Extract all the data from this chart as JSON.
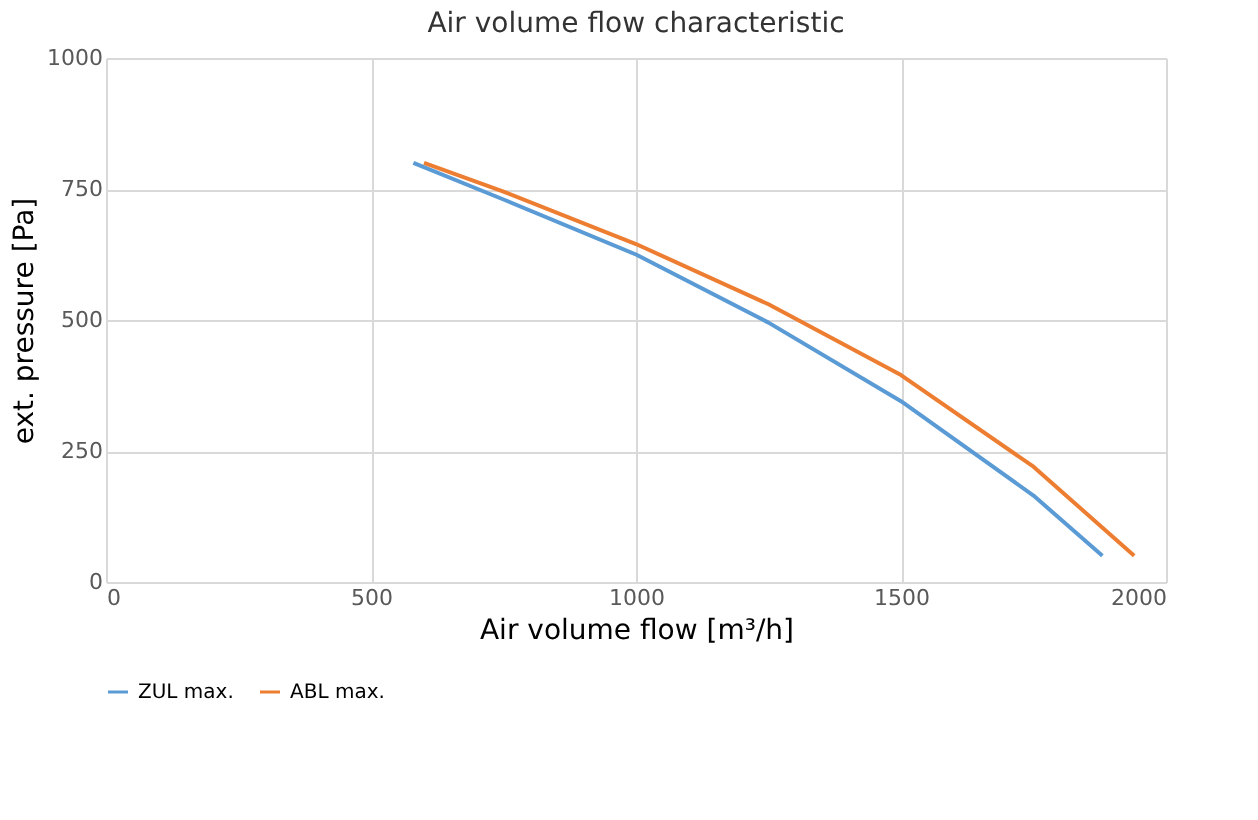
{
  "chart_data": {
    "type": "line",
    "title": "Air volume flow characteristic",
    "xlabel": "Air volume flow [m³/h]",
    "ylabel": "ext. pressure [Pa]",
    "series": [
      {
        "name": "ZUL max.",
        "color": "#5b9bd5",
        "x": [
          580,
          750,
          1000,
          1250,
          1500,
          1750,
          1880
        ],
        "values": [
          800,
          730,
          625,
          495,
          345,
          165,
          50
        ]
      },
      {
        "name": "ABL max.",
        "color": "#ed7d31",
        "x": [
          600,
          750,
          1000,
          1250,
          1500,
          1750,
          1940
        ],
        "values": [
          800,
          745,
          645,
          530,
          395,
          220,
          50
        ]
      }
    ],
    "xlim": [
      0,
      2000
    ],
    "xticks": [
      0,
      500,
      1000,
      1500,
      2000
    ],
    "ylim": [
      0,
      1000
    ],
    "yticks": [
      0,
      250,
      500,
      750,
      1000
    ],
    "grid": true,
    "legend": "bottom",
    "marker": "none",
    "line_style": "solid"
  }
}
